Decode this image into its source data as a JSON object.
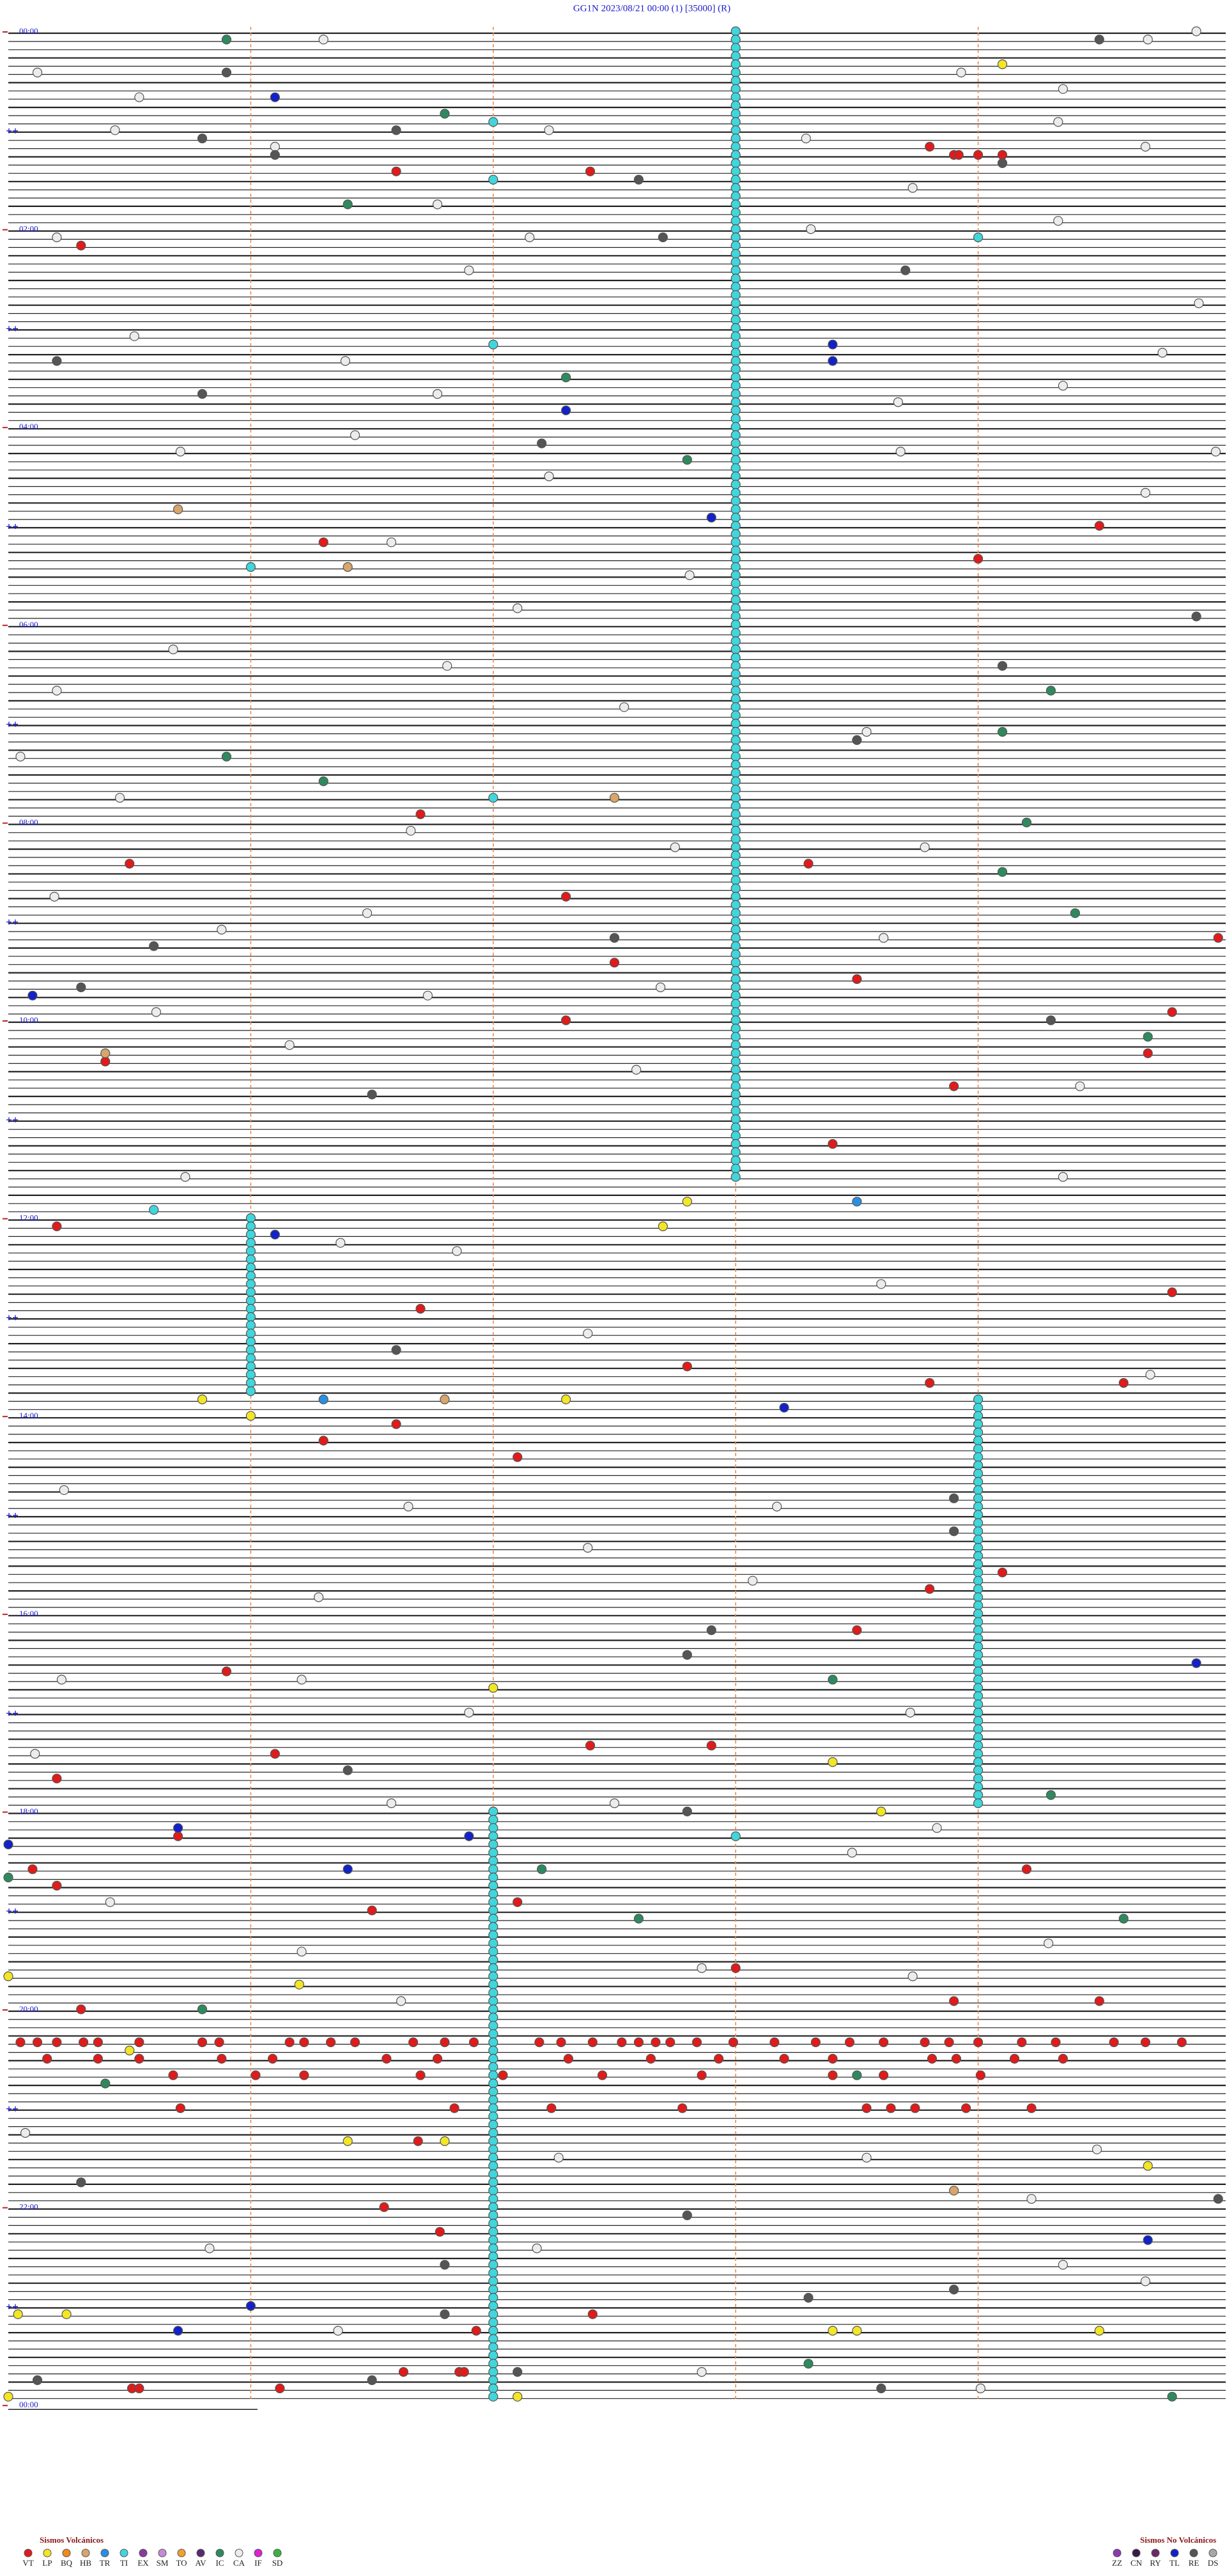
{
  "chart_data": {
    "type": "helicorder",
    "title": "GG1N    2023/08/21 00:00    (1)    [35000]    (R)",
    "time_labels": [
      "00:00",
      "02:00",
      "04:00",
      "06:00",
      "08:00",
      "10:00",
      "12:00",
      "14:00",
      "16:00",
      "18:00",
      "20:00",
      "22:00",
      "00:00"
    ],
    "groups": [
      {
        "title": "Sismos Volcánicos",
        "series": [
          {
            "name": "VT",
            "color": "#e01b1b",
            "values": [
              130.3,
              73.8,
              78.9,
              78.92,
              79.0,
              79.1,
              87.4,
              86.6,
              304.5,
              311.3,
              324,
              476.7,
              505.5,
              508.3,
              527.3,
              554.99,
              567.5,
              578.5,
              599.8,
              602.3,
              625.4,
              624.7,
              643.9,
              678.4,
              725.2,
              776.7,
              769.8,
              812.8,
              823.8,
              824.6,
              846.6,
              856.3,
              867.1,
              939.1,
              948.8,
              973.5,
              995.9,
              1046.1,
              1042.9,
              1042.4,
              1060.2,
              1095.7,
              1115.1,
              1125.2,
              1119.2,
              1141.5,
              1137.1,
              1178.0,
              1198.9,
              1200.3,
              1199.5,
              1220.05,
              1220.12,
              1220.2,
              1220.31,
              1220.37,
              1220.54,
              1220.8,
              1220.87,
              1221.16,
              1221.22,
              1221.33,
              1221.43,
              1221.67,
              1221.8,
              1221.92,
              1222.19,
              1222.28,
              1222.41,
              1222.53,
              1222.6,
              1222.67,
              1222.73,
              1222.84,
              1222.99,
              1223.16,
              1223.33,
              1223.47,
              1223.61,
              1223.78,
              1223.88,
              1224.0,
              1224.18,
              1224.32,
              1224.56,
              1224.69,
              1224.84,
              1230.16,
              1230.37,
              1230.54,
              1230.88,
              1231.09,
              1231.56,
              1231.77,
              1232.31,
              1232.65,
              1232.93,
              1233.2,
              1233.4,
              1233.81,
              1233.91,
              1234.15,
              1234.35,
              1240.68,
              1241.02,
              1241.22,
              1241.7,
              1242.04,
              1242.45,
              1242.86,
              1243.4,
              1243.61,
              1244.01,
              1260.71,
              1261.84,
              1262.24,
              1262.78,
              1263.54,
              1263.64,
              1263.74,
              1263.95,
              1264.22,
              1281.69,
              1321.55,
              1336.78,
              1387.41,
              1396.93,
              1421.63,
              1421.86,
              1421.88,
              1431.12,
              1430.51,
              1430.54
            ]
          },
          {
            "name": "LP",
            "color": "#f2e625",
            "values": [
              24.1,
              712.8,
              727.7,
              830.8,
              841.0,
              832.3,
              1007.0,
              1053.4,
              1083.6,
              1225.5,
              1186.2,
              1180.0,
              1281.4,
              1281.8,
              1385.04,
              1385.24,
              1398.4,
              1398.5,
              1399.5,
              1299.7,
              1435.0,
              1437.1
            ]
          },
          {
            "name": "BQ",
            "color": "#f08a1c",
            "values": []
          },
          {
            "name": "HB",
            "color": "#d9a56a",
            "values": [
              290.7,
              326.4,
              620.4,
              467.5,
              831.8,
              1313.9
            ]
          },
          {
            "name": "TR",
            "color": "#2a8fe0",
            "values": [
              831.3,
              713.5
            ]
          },
          {
            "name": "TI",
            "color": "#3fd6dc",
            "values": [
              3,
              8,
              13,
              18,
              23,
              28,
              33,
              38,
              43,
              48,
              53,
              58,
              63,
              68,
              73,
              78,
              83,
              88,
              93,
              98,
              103,
              108,
              113,
              118,
              123,
              128,
              133,
              138,
              143,
              148,
              153,
              158,
              163,
              168,
              173,
              178,
              183,
              188,
              193,
              198,
              203,
              208,
              213,
              218,
              223,
              228,
              233,
              238,
              243,
              248,
              253,
              258,
              263,
              268,
              273,
              278,
              283,
              288,
              293,
              298,
              303,
              308,
              313,
              318,
              323,
              328,
              333,
              338,
              343,
              348,
              353,
              358,
              363,
              368,
              373,
              378,
              383,
              388,
              393,
              398,
              403,
              408,
              413,
              418,
              423,
              428,
              433,
              438,
              443,
              448,
              453,
              458,
              463,
              468,
              473,
              478,
              483,
              488,
              493,
              498,
              503,
              508,
              513,
              518,
              523,
              528,
              533,
              538,
              543,
              548,
              553,
              558,
              563,
              568,
              573,
              578,
              583,
              588,
              593,
              598,
              603,
              608,
              613,
              618,
              623,
              628,
              633,
              638,
              643,
              648,
              653,
              658,
              663,
              668,
              673,
              678,
              683,
              688,
              693,
              698,
              57.0,
              92.0,
              129.0,
              192.0,
              326.0,
              467.0,
              715.6,
              1098.0,
              721,
              726,
              731,
              736,
              741,
              746,
              751,
              756,
              761,
              766,
              771,
              776,
              781,
              786,
              791,
              796,
              801,
              806,
              811,
              816,
              821,
              826,
              834,
              839,
              844,
              849,
              854,
              859,
              864,
              869,
              874,
              879,
              884,
              889,
              894,
              899,
              904,
              909,
              914,
              919,
              924,
              929,
              934,
              939,
              944,
              949,
              954,
              959,
              964,
              969,
              974,
              979,
              984,
              989,
              994,
              999,
              1004,
              1009,
              1014,
              1019,
              1024,
              1029,
              1034,
              1039,
              1044,
              1049,
              1054,
              1059,
              1064,
              1069,
              1074,
              1079,
              1082,
              1087,
              1092,
              1097,
              1102,
              1107,
              1112,
              1117,
              1122,
              1127,
              1132,
              1137,
              1142,
              1147,
              1152,
              1157,
              1162,
              1167,
              1172,
              1177,
              1182,
              1187,
              1192,
              1197,
              1202,
              1207,
              1212,
              1217,
              1222,
              1227,
              1232,
              1237,
              1242,
              1247,
              1252,
              1257,
              1262,
              1267,
              1272,
              1277,
              1282,
              1287,
              1292,
              1297,
              1302,
              1307,
              1312,
              1317,
              1322,
              1327,
              1332,
              1337,
              1342,
              1347,
              1352,
              1357,
              1362,
              1367,
              1372,
              1377,
              1382,
              1387,
              1392,
              1397,
              1402,
              1407,
              1412,
              1417,
              1422,
              1427,
              1432,
              1437
            ]
          },
          {
            "name": "EX",
            "color": "#8a3aa0",
            "values": []
          },
          {
            "name": "SM",
            "color": "#c78ad8",
            "values": []
          },
          {
            "name": "TO",
            "color": "#f0a030",
            "values": []
          },
          {
            "name": "AV",
            "color": "#5a2a70",
            "values": []
          },
          {
            "name": "IC",
            "color": "#2e8a5e",
            "values": [
              5.9,
              51.8,
              106.4,
              212.3,
              262.8,
              440.9,
              456.3,
              484.2,
              404.3,
              429.1,
              514.1,
              539.4,
              614.7,
              1003.4,
              1074.3,
              1117.2,
              1147.6,
              1243.5,
              1418.3,
              1200.8,
              1120.0,
              1149.6,
              1245.4,
              1439.8
            ]
          },
          {
            "name": "CA",
            "color": "#ececec",
            "values": [
              6.3,
              4.9,
              9.7,
              25.12,
              40.54,
              28.93,
              39.35,
              59.33,
              60.44,
              71.1,
              62.23,
              68.29,
              74.69,
              98.73,
              106.77,
              125.2,
              127.15,
              123.31,
              119.33,
              146.9,
              169.91,
              185.52,
              201.39,
              199.76,
              221.77,
              228.67,
              219.35,
              246.43,
              255.71,
              258.68,
              259.98,
              272.23,
              284.69,
              311.58,
              332.81,
              352.1,
              375.68,
              386.81,
              400.2,
              412.54,
              440.05,
              428.54,
              465.46,
              486.66,
              498.78,
              497.75,
              525.19,
              536.48,
              545.88,
              553.61,
              586.73,
              582.69,
              595.61,
              616.16,
              632.59,
              644.42,
              695.73,
              699.35,
              736.37,
              741.85,
              763.6,
              792.39,
              819.71,
              885.23,
              896.65,
              898.17,
              922.39,
              951.28,
              943.07,
              1000.22,
              1001.21,
              1021.9,
              1023.72,
              1045.11,
              1076.58,
              1077.5,
              1093.83,
              1108.48,
              1135.42,
              1166.21,
              1164.29,
              1177.86,
              1196.62,
              1183.73,
              1275.07,
              1292.27,
              1293.54,
              1289.49,
              1319.22,
              1345.83,
              1347.18,
              1359.35,
              1369.69,
              1396.36,
              1422.86,
              1434.01
            ]
          },
          {
            "name": "IF",
            "color": "#e020d0",
            "values": []
          },
          {
            "name": "SD",
            "color": "#3cb043",
            "values": []
          }
        ]
      },
      {
        "title": "Sismos No Volcánicos",
        "series": [
          {
            "name": "ZZ",
            "color": "#8a3ab0",
            "values": []
          },
          {
            "name": "CN",
            "color": "#3a1a4a",
            "values": []
          },
          {
            "name": "RY",
            "color": "#6a2a6a",
            "values": []
          },
          {
            "name": "TL",
            "color": "#1222c8",
            "values": [
              41.1,
              193.4,
              203.4,
              232.3,
              297.9,
              585.1,
              731.1,
              838.2,
              994.9,
              1090.7,
              1116.4,
              1096.9,
              1100.0,
              1344.7,
              1395.7,
              1381.0
            ]
          },
          {
            "name": "RE",
            "color": "#555555",
            "values": [
              9.5,
              25.9,
              65.8,
              61.6,
              76.1,
              92.6,
              84.1,
              127.7,
              148.7,
              200.2,
              220.8,
              252.2,
              359.9,
              389.1,
              433.5,
              552.5,
              555.6,
              580.3,
              604.3,
              646.5,
              801.6,
              893.9,
              913.9,
              972.9,
              987.8,
              1056.4,
              1082.8,
              1305.3,
              1356.8,
              1327.8,
              1378.3,
              1373.9,
              1426.5,
              1433.6,
              1425.12,
              1319.99,
              1422.1,
              1386.8
            ]
          },
          {
            "name": "DS",
            "color": "#a8a8a8",
            "values": []
          }
        ]
      }
    ]
  }
}
